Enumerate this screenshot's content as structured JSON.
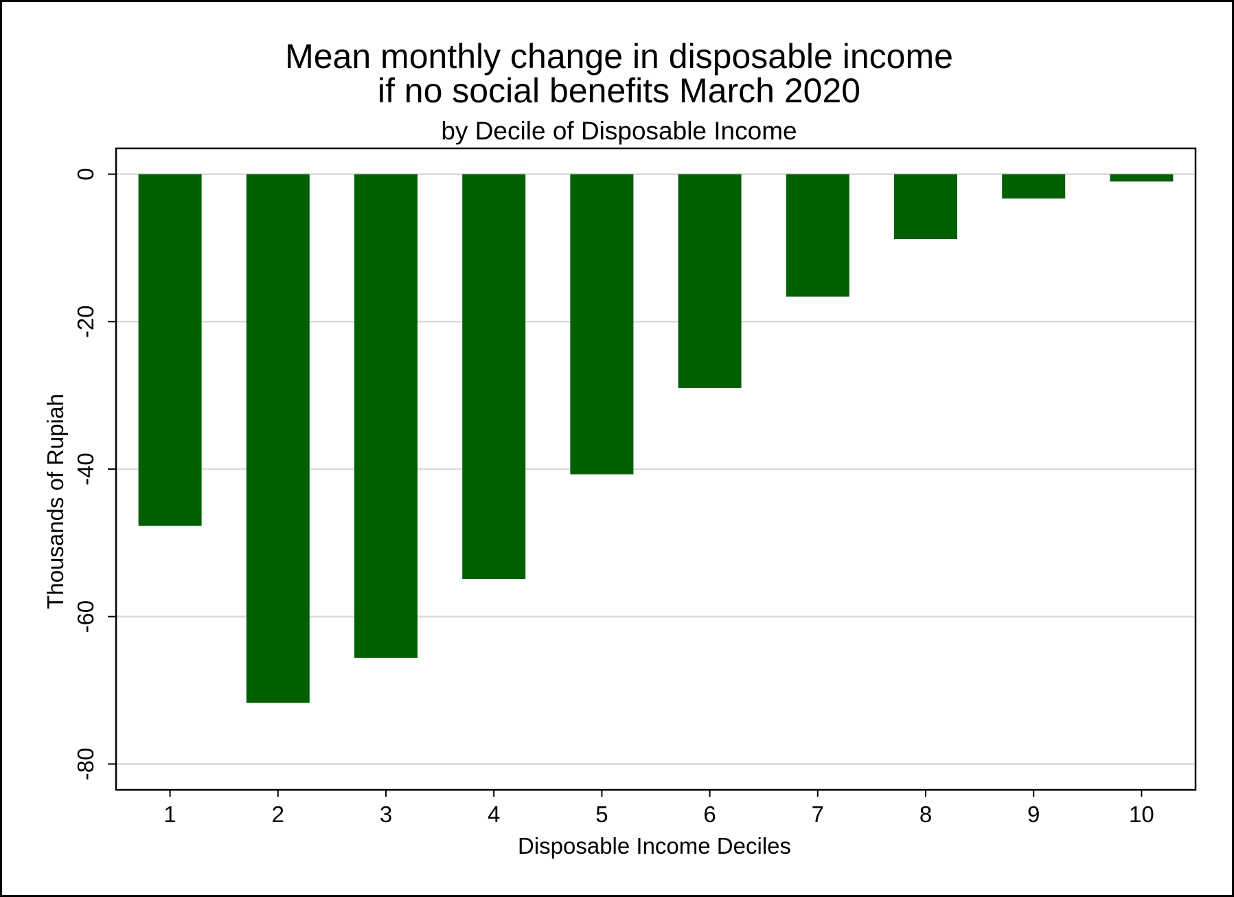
{
  "chart_data": {
    "type": "bar",
    "title": "Mean monthly change in disposable income",
    "title_line_2": "if no social benefits March 2020",
    "subtitle": "by Decile of Disposable Income",
    "xlabel": "Disposable Income Deciles",
    "ylabel": "Thousands of Rupiah",
    "categories": [
      "1",
      "2",
      "3",
      "4",
      "5",
      "6",
      "7",
      "8",
      "9",
      "10"
    ],
    "values": [
      -47.7,
      -71.7,
      -65.6,
      -54.9,
      -40.7,
      -29.0,
      -16.6,
      -8.8,
      -3.3,
      -1.0
    ],
    "yticks": [
      "0",
      "-20",
      "-40",
      "-60",
      "-80"
    ],
    "ylim": [
      -83.5,
      3.5
    ],
    "grid": true,
    "legend": "none",
    "bar_color": "#005f00",
    "grid_color": "#d9d9d9"
  }
}
